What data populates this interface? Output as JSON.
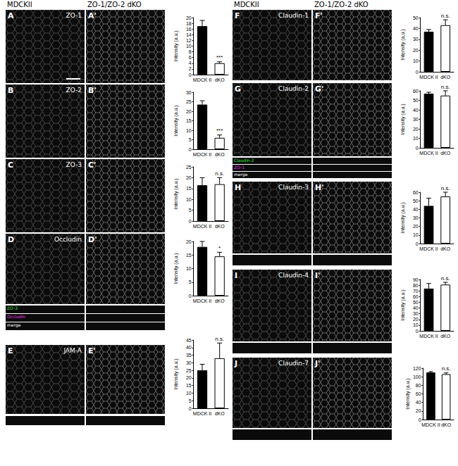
{
  "figure": {
    "headers": [
      "MDCKII",
      "ZO-1/ZO-2 dKO"
    ],
    "panels": [
      {
        "labels": [
          "A",
          "A'"
        ],
        "stain": "ZO-1",
        "ortho": false,
        "ortho_labels": []
      },
      {
        "labels": [
          "B",
          "B'"
        ],
        "stain": "ZO-2",
        "ortho": false,
        "ortho_labels": []
      },
      {
        "labels": [
          "C",
          "C'"
        ],
        "stain": "ZO-3",
        "ortho": false,
        "ortho_labels": []
      },
      {
        "labels": [
          "D",
          "D'"
        ],
        "stain": "Occludin",
        "ortho": true,
        "ortho_labels": [
          "ZO-3",
          "Occludin",
          "merge"
        ]
      },
      {
        "labels": [
          "E",
          "E'"
        ],
        "stain": "JAM-A",
        "ortho": true,
        "ortho_labels": []
      },
      {
        "labels": [
          "F",
          "F'"
        ],
        "stain": "Claudin-1",
        "ortho": false,
        "ortho_labels": []
      },
      {
        "labels": [
          "G",
          "G'"
        ],
        "stain": "Claudin-2",
        "ortho": true,
        "ortho_labels": [
          "Claudin-2",
          "ZO-1",
          "merge"
        ]
      },
      {
        "labels": [
          "H",
          "H'"
        ],
        "stain": "Claudin-3",
        "ortho": true,
        "ortho_labels": []
      },
      {
        "labels": [
          "I",
          "I'"
        ],
        "stain": "Claudin-4",
        "ortho": true,
        "ortho_labels": []
      },
      {
        "labels": [
          "J",
          "J'"
        ],
        "stain": "Claudin-7",
        "ortho": true,
        "ortho_labels": []
      }
    ]
  },
  "chart_data": [
    {
      "type": "bar",
      "categories": [
        "MDCK II",
        "dKO"
      ],
      "values": [
        17,
        4
      ],
      "errors": [
        2,
        0.5
      ],
      "colors": [
        "#000000",
        "#ffffff"
      ],
      "ylabel": "Intensity (a.u.)",
      "ylim": [
        0,
        20
      ],
      "yticks": [
        0,
        2,
        4,
        6,
        8,
        10,
        12,
        14,
        16,
        18,
        20
      ],
      "annotation": "***",
      "grid": false
    },
    {
      "type": "bar",
      "categories": [
        "MDCK II",
        "dKO"
      ],
      "values": [
        23.5,
        6
      ],
      "errors": [
        2,
        1.5
      ],
      "colors": [
        "#000000",
        "#ffffff"
      ],
      "ylabel": "Intensity (a.u.)",
      "ylim": [
        0,
        30
      ],
      "yticks": [
        0,
        5,
        10,
        15,
        20,
        25,
        30
      ],
      "annotation": "***",
      "grid": false
    },
    {
      "type": "bar",
      "categories": [
        "MDCK II",
        "dKO"
      ],
      "values": [
        16.5,
        17
      ],
      "errors": [
        3.5,
        3
      ],
      "colors": [
        "#000000",
        "#ffffff"
      ],
      "ylabel": "Intensity (a.u.)",
      "ylim": [
        0,
        25
      ],
      "yticks": [
        0,
        5,
        10,
        15,
        20,
        25
      ],
      "annotation": "n.s.",
      "grid": false
    },
    {
      "type": "bar",
      "categories": [
        "MDCK II",
        "dKO"
      ],
      "values": [
        18,
        14.5
      ],
      "errors": [
        2,
        1.5
      ],
      "colors": [
        "#000000",
        "#ffffff"
      ],
      "ylabel": "Intensity (a.u.)",
      "ylim": [
        0,
        20
      ],
      "yticks": [
        0,
        5,
        10,
        15,
        20
      ],
      "annotation": "*",
      "grid": false
    },
    {
      "type": "bar",
      "categories": [
        "MDCK II",
        "dKO"
      ],
      "values": [
        25,
        33
      ],
      "errors": [
        4,
        10
      ],
      "colors": [
        "#000000",
        "#ffffff"
      ],
      "ylabel": "Intensity (a.u.)",
      "ylim": [
        0,
        45
      ],
      "yticks": [
        0,
        5,
        10,
        15,
        20,
        25,
        30,
        35,
        40,
        45
      ],
      "annotation": "n.s.",
      "grid": false
    },
    {
      "type": "bar",
      "categories": [
        "MDCK II",
        "dKO"
      ],
      "values": [
        37,
        43
      ],
      "errors": [
        2,
        5
      ],
      "colors": [
        "#000000",
        "#ffffff"
      ],
      "ylabel": "Intensity (a.u.)",
      "ylim": [
        0,
        50
      ],
      "yticks": [
        0,
        10,
        20,
        30,
        40,
        50
      ],
      "annotation": "n.s.",
      "grid": false
    },
    {
      "type": "bar",
      "categories": [
        "MDCK II",
        "dKO"
      ],
      "values": [
        57,
        55
      ],
      "errors": [
        1.5,
        5
      ],
      "colors": [
        "#000000",
        "#ffffff"
      ],
      "ylabel": "Intensity (a.u.)",
      "ylim": [
        0,
        60
      ],
      "yticks": [
        0,
        10,
        20,
        30,
        40,
        50,
        60
      ],
      "annotation": "n.s.",
      "grid": false
    },
    {
      "type": "bar",
      "categories": [
        "MDCK II",
        "dKO"
      ],
      "values": [
        44,
        55
      ],
      "errors": [
        9,
        5
      ],
      "colors": [
        "#000000",
        "#ffffff"
      ],
      "ylabel": "Intensity (a.u.)",
      "ylim": [
        0,
        60
      ],
      "yticks": [
        0,
        10,
        20,
        30,
        40,
        50,
        60
      ],
      "annotation": "n.s.",
      "grid": false
    },
    {
      "type": "bar",
      "categories": [
        "MDCK II",
        "dKO"
      ],
      "values": [
        74,
        81
      ],
      "errors": [
        9,
        4
      ],
      "colors": [
        "#000000",
        "#ffffff"
      ],
      "ylabel": "Intensity (a.u.)",
      "ylim": [
        0,
        90
      ],
      "yticks": [
        0,
        10,
        20,
        30,
        40,
        50,
        60,
        70,
        80,
        90
      ],
      "annotation": "n.s.",
      "grid": false
    },
    {
      "type": "bar",
      "categories": [
        "MDCK II",
        "dKO"
      ],
      "values": [
        110,
        106
      ],
      "errors": [
        2,
        3
      ],
      "colors": [
        "#000000",
        "#ffffff"
      ],
      "ylabel": "Intensity (a.u.)",
      "ylim": [
        0,
        120
      ],
      "yticks": [
        0,
        20,
        40,
        60,
        80,
        100,
        120
      ],
      "annotation": "n.s.",
      "grid": false
    }
  ]
}
